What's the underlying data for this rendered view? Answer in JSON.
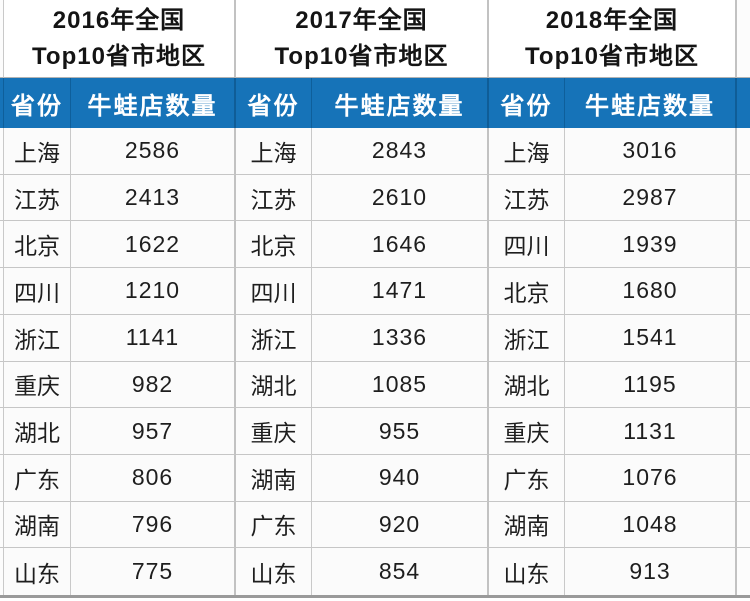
{
  "colors": {
    "header_blue": "#1673b8",
    "header_text": "#ffffff",
    "title_text": "#141414",
    "cell_text": "#1e1e1e",
    "grid_line": "#c9c9c9",
    "bottom_border": "#9a9a9a"
  },
  "chart_data": [
    {
      "type": "table",
      "title": "2016年全国Top10省市地区",
      "title_lines": [
        "2016年全国",
        "Top10省市地区"
      ],
      "columns": [
        "省份",
        "牛蛙店数量"
      ],
      "rows": [
        [
          "上海",
          2586
        ],
        [
          "江苏",
          2413
        ],
        [
          "北京",
          1622
        ],
        [
          "四川",
          1210
        ],
        [
          "浙江",
          1141
        ],
        [
          "重庆",
          982
        ],
        [
          "湖北",
          957
        ],
        [
          "广东",
          806
        ],
        [
          "湖南",
          796
        ],
        [
          "山东",
          775
        ]
      ]
    },
    {
      "type": "table",
      "title": "2017年全国Top10省市地区",
      "title_lines": [
        "2017年全国",
        "Top10省市地区"
      ],
      "columns": [
        "省份",
        "牛蛙店数量"
      ],
      "rows": [
        [
          "上海",
          2843
        ],
        [
          "江苏",
          2610
        ],
        [
          "北京",
          1646
        ],
        [
          "四川",
          1471
        ],
        [
          "浙江",
          1336
        ],
        [
          "湖北",
          1085
        ],
        [
          "重庆",
          955
        ],
        [
          "湖南",
          940
        ],
        [
          "广东",
          920
        ],
        [
          "山东",
          854
        ]
      ]
    },
    {
      "type": "table",
      "title": "2018年全国Top10省市地区",
      "title_lines": [
        "2018年全国",
        "Top10省市地区"
      ],
      "columns": [
        "省份",
        "牛蛙店数量"
      ],
      "rows": [
        [
          "上海",
          3016
        ],
        [
          "江苏",
          2987
        ],
        [
          "四川",
          1939
        ],
        [
          "北京",
          1680
        ],
        [
          "浙江",
          1541
        ],
        [
          "湖北",
          1195
        ],
        [
          "重庆",
          1131
        ],
        [
          "广东",
          1076
        ],
        [
          "湖南",
          1048
        ],
        [
          "山东",
          913
        ]
      ]
    }
  ]
}
